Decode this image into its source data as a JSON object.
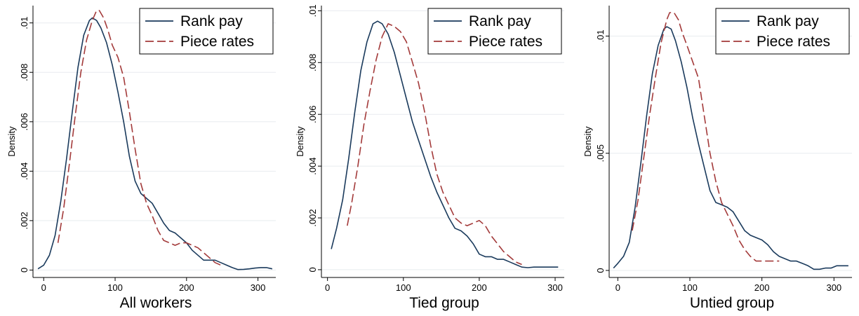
{
  "chart_data": [
    {
      "type": "line",
      "xlabel": "All workers",
      "ylabel": "Density",
      "xlim": [
        -15,
        325
      ],
      "ylim": [
        -0.0003,
        0.0107
      ],
      "xticks": [
        0,
        100,
        200,
        300
      ],
      "xtick_labels": [
        "0",
        "100",
        "200",
        "300"
      ],
      "yticks": [
        0,
        0.002,
        0.004,
        0.006,
        0.008,
        0.01
      ],
      "ytick_labels": [
        "0",
        ".002",
        ".004",
        ".006",
        ".008",
        ".01"
      ],
      "grid": true,
      "legend_position": "top-right",
      "series": [
        {
          "name": "Rank pay",
          "color": "#1a3a5c",
          "dash": "solid",
          "x": [
            -8,
            0,
            8,
            16,
            24,
            32,
            40,
            48,
            56,
            64,
            68,
            74,
            80,
            88,
            96,
            104,
            112,
            120,
            128,
            136,
            144,
            152,
            160,
            168,
            176,
            184,
            192,
            200,
            208,
            216,
            224,
            232,
            240,
            248,
            256,
            264,
            272,
            280,
            288,
            296,
            304,
            312,
            320
          ],
          "y": [
            5e-05,
            0.0002,
            0.0006,
            0.0014,
            0.0028,
            0.0045,
            0.0064,
            0.0082,
            0.0095,
            0.0101,
            0.0102,
            0.0101,
            0.0098,
            0.0092,
            0.0083,
            0.0072,
            0.006,
            0.0046,
            0.0036,
            0.0031,
            0.0029,
            0.0027,
            0.0023,
            0.0019,
            0.0016,
            0.0015,
            0.0013,
            0.0011,
            0.0008,
            0.0006,
            0.0004,
            0.0004,
            0.0004,
            0.0003,
            0.0002,
            0.0001,
            2e-05,
            3e-05,
            5e-05,
            8e-05,
            0.0001,
            0.0001,
            5e-05
          ]
        },
        {
          "name": "Piece rates",
          "color": "#a33a3a",
          "dash": "dashed",
          "x": [
            20,
            28,
            36,
            44,
            52,
            60,
            68,
            74,
            78,
            84,
            90,
            96,
            104,
            112,
            120,
            128,
            136,
            144,
            152,
            160,
            168,
            176,
            184,
            192,
            200,
            208,
            216,
            224,
            232,
            240,
            248
          ],
          "y": [
            0.0011,
            0.0025,
            0.0043,
            0.0062,
            0.008,
            0.0093,
            0.0101,
            0.0105,
            0.0105,
            0.0102,
            0.0097,
            0.0091,
            0.0086,
            0.0078,
            0.0064,
            0.0049,
            0.0035,
            0.0027,
            0.0022,
            0.0016,
            0.0012,
            0.0011,
            0.001,
            0.0011,
            0.0011,
            0.001,
            0.0009,
            0.0007,
            0.0005,
            0.0003,
            0.0002
          ]
        }
      ]
    },
    {
      "type": "line",
      "xlabel": "Tied group",
      "ylabel": "Density",
      "xlim": [
        -8,
        312
      ],
      "ylim": [
        -0.0003,
        0.0102
      ],
      "xticks": [
        0,
        100,
        200,
        300
      ],
      "xtick_labels": [
        "0",
        "100",
        "200",
        "300"
      ],
      "yticks": [
        0,
        0.002,
        0.004,
        0.006,
        0.008,
        0.01
      ],
      "ytick_labels": [
        "0",
        ".002",
        ".004",
        ".006",
        ".008",
        ".01"
      ],
      "grid": true,
      "legend_position": "top-right",
      "series": [
        {
          "name": "Rank pay",
          "color": "#1a3a5c",
          "dash": "solid",
          "x": [
            5,
            12,
            20,
            28,
            36,
            44,
            52,
            60,
            66,
            72,
            80,
            88,
            96,
            104,
            112,
            120,
            128,
            136,
            144,
            152,
            160,
            168,
            176,
            184,
            192,
            200,
            208,
            216,
            224,
            232,
            240,
            248,
            256,
            264,
            272,
            280,
            288,
            296,
            304
          ],
          "y": [
            0.0008,
            0.0016,
            0.0027,
            0.0043,
            0.0061,
            0.0077,
            0.0088,
            0.0095,
            0.0096,
            0.0095,
            0.0091,
            0.0084,
            0.0075,
            0.0066,
            0.0057,
            0.005,
            0.0043,
            0.0036,
            0.003,
            0.0025,
            0.002,
            0.0016,
            0.0015,
            0.0013,
            0.001,
            0.0006,
            0.0005,
            0.0005,
            0.0004,
            0.0004,
            0.0003,
            0.0002,
            0.0001,
            8e-05,
            0.0001,
            0.0001,
            0.0001,
            0.0001,
            0.0001
          ]
        },
        {
          "name": "Piece rates",
          "color": "#a33a3a",
          "dash": "dashed",
          "x": [
            26,
            32,
            40,
            48,
            56,
            64,
            72,
            80,
            88,
            96,
            104,
            112,
            120,
            128,
            136,
            144,
            152,
            160,
            168,
            176,
            184,
            192,
            200,
            208,
            216,
            224,
            232,
            240,
            248,
            256
          ],
          "y": [
            0.0017,
            0.0026,
            0.004,
            0.0056,
            0.0069,
            0.0081,
            0.009,
            0.0095,
            0.0094,
            0.0092,
            0.0088,
            0.008,
            0.0072,
            0.0061,
            0.0048,
            0.0037,
            0.003,
            0.0025,
            0.002,
            0.0018,
            0.0017,
            0.0018,
            0.0019,
            0.0017,
            0.0013,
            0.001,
            0.0007,
            0.0005,
            0.0003,
            0.0002
          ]
        }
      ]
    },
    {
      "type": "line",
      "xlabel": "Untied group",
      "ylabel": "Density",
      "xlim": [
        -12,
        325
      ],
      "ylim": [
        -0.0003,
        0.0113
      ],
      "xticks": [
        0,
        100,
        200,
        300
      ],
      "xtick_labels": [
        "0",
        "100",
        "200",
        "300"
      ],
      "yticks": [
        0,
        0.005,
        0.01
      ],
      "ytick_labels": [
        "0",
        ".005",
        ".01"
      ],
      "grid": true,
      "legend_position": "top-right",
      "series": [
        {
          "name": "Rank pay",
          "color": "#1a3a5c",
          "dash": "solid",
          "x": [
            -6,
            0,
            8,
            16,
            24,
            32,
            40,
            48,
            56,
            64,
            68,
            74,
            80,
            88,
            96,
            104,
            112,
            120,
            128,
            136,
            144,
            152,
            160,
            168,
            176,
            184,
            192,
            200,
            208,
            216,
            224,
            232,
            240,
            248,
            256,
            264,
            272,
            280,
            288,
            296,
            304,
            312,
            320
          ],
          "y": [
            0.0001,
            0.0003,
            0.0006,
            0.0012,
            0.0027,
            0.0046,
            0.0066,
            0.0084,
            0.0096,
            0.0103,
            0.0104,
            0.0103,
            0.0098,
            0.0089,
            0.0078,
            0.0065,
            0.0054,
            0.0044,
            0.0034,
            0.0029,
            0.0028,
            0.0027,
            0.0025,
            0.0021,
            0.0017,
            0.0015,
            0.0014,
            0.0013,
            0.0011,
            0.0008,
            0.0006,
            0.0005,
            0.0004,
            0.0004,
            0.0003,
            0.0002,
            5e-05,
            5e-05,
            0.0001,
            0.0001,
            0.0002,
            0.0002,
            0.0002
          ]
        },
        {
          "name": "Piece rates",
          "color": "#a33a3a",
          "dash": "dashed",
          "x": [
            20,
            28,
            36,
            44,
            52,
            60,
            68,
            72,
            78,
            84,
            90,
            96,
            104,
            112,
            120,
            128,
            136,
            144,
            152,
            160,
            168,
            176,
            184,
            192,
            200,
            208,
            216,
            224
          ],
          "y": [
            0.0017,
            0.003,
            0.0048,
            0.0066,
            0.0082,
            0.0097,
            0.0107,
            0.011,
            0.011,
            0.0107,
            0.0101,
            0.0096,
            0.0089,
            0.0082,
            0.0066,
            0.005,
            0.0038,
            0.0029,
            0.0024,
            0.0019,
            0.0013,
            0.0009,
            0.0006,
            0.0004,
            0.0004,
            0.0004,
            0.0004,
            0.0004
          ]
        }
      ]
    }
  ]
}
